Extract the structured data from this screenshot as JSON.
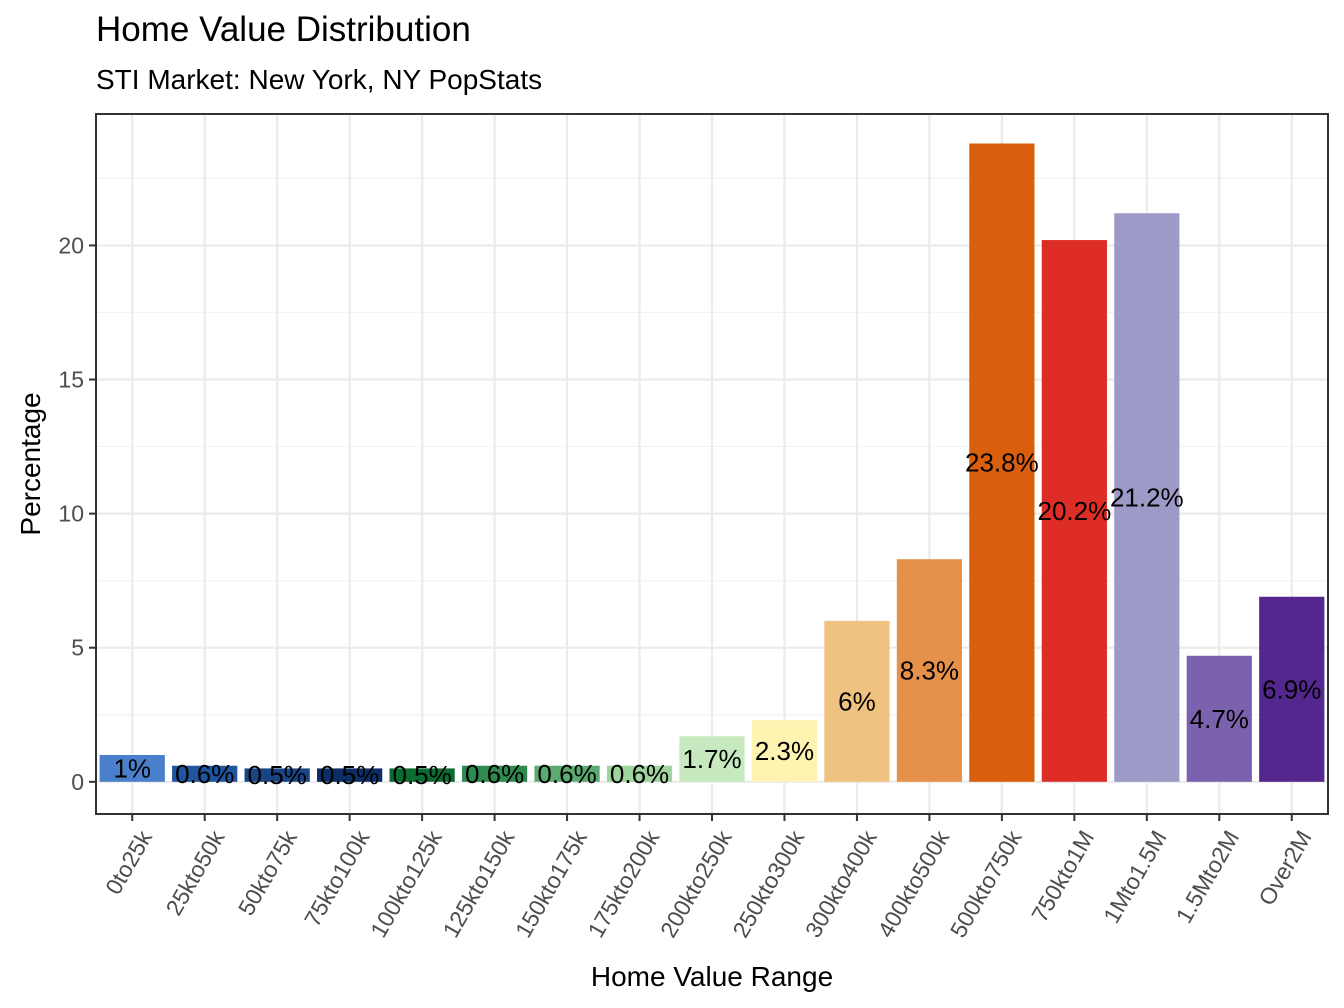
{
  "chart_data": {
    "type": "bar",
    "title": "Home Value Distribution",
    "subtitle": "STI Market: New York, NY PopStats",
    "xlabel": "Home Value Range",
    "ylabel": "Percentage",
    "ylim": [
      -1.2,
      24.9
    ],
    "yticks": [
      0,
      5,
      10,
      15,
      20
    ],
    "grid": true,
    "legend": "none",
    "categories": [
      "0to25k",
      "25kto50k",
      "50kto75k",
      "75kto100k",
      "100kto125k",
      "125kto150k",
      "150kto175k",
      "175kto200k",
      "200kto250k",
      "250kto300k",
      "300kto400k",
      "400kto500k",
      "500kto750k",
      "750kto1M",
      "1Mto1.5M",
      "1.5Mto2M",
      "Over2M"
    ],
    "values": [
      1.0,
      0.6,
      0.5,
      0.5,
      0.5,
      0.6,
      0.6,
      0.6,
      1.7,
      2.3,
      6.0,
      8.3,
      23.8,
      20.2,
      21.2,
      4.7,
      6.9
    ],
    "labels": [
      "1%",
      "0.6%",
      "0.5%",
      "0.5%",
      "0.5%",
      "0.6%",
      "0.6%",
      "0.6%",
      "1.7%",
      "2.3%",
      "6%",
      "8.3%",
      "23.8%",
      "20.2%",
      "21.2%",
      "4.7%",
      "6.9%"
    ],
    "colors": [
      "#4A7FCB",
      "#2155A0",
      "#1A4585",
      "#0C2E66",
      "#0C6B30",
      "#2F8A4F",
      "#5BAA70",
      "#9FD49F",
      "#C7E9C0",
      "#FFF3B2",
      "#F0C27F",
      "#E5914A",
      "#D95F0E",
      "#DE2D26",
      "#9E9AC8",
      "#7B62AE",
      "#54278F"
    ]
  }
}
